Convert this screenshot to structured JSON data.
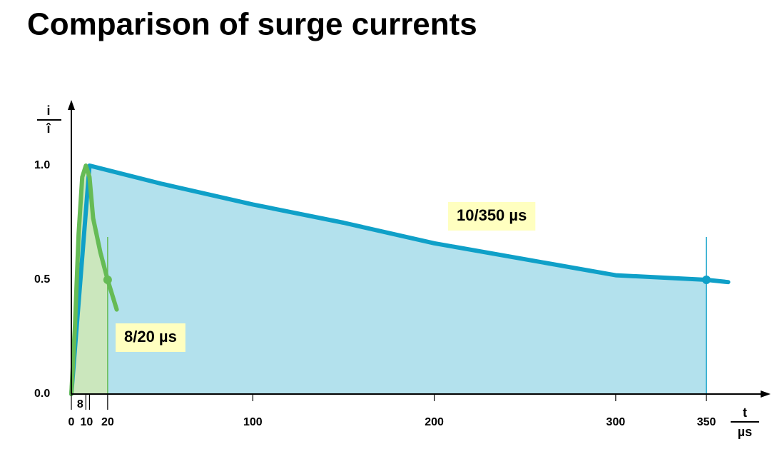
{
  "chart_data": {
    "type": "area",
    "title": "Comparison of surge currents",
    "y_label": {
      "numerator": "i",
      "denominator": "î"
    },
    "x_label": {
      "numerator": "t",
      "denominator": "µs"
    },
    "series": [
      {
        "name": "10/350 µs",
        "color": "#0fa0c8",
        "fill": "#b3e1ed",
        "x": [
          0,
          10,
          50,
          100,
          150,
          200,
          250,
          300,
          350,
          362
        ],
        "values": [
          0,
          1.0,
          0.92,
          0.83,
          0.75,
          0.66,
          0.59,
          0.52,
          0.5,
          0.49
        ]
      },
      {
        "name": "8/20 µs",
        "color": "#66bb55",
        "fill": "#cbe7bd",
        "x": [
          0,
          2,
          4,
          6,
          8,
          10,
          12,
          16,
          20,
          25
        ],
        "values": [
          0,
          0.3,
          0.7,
          0.95,
          1.0,
          0.95,
          0.77,
          0.62,
          0.5,
          0.37
        ]
      }
    ],
    "xlim": [
      0,
      380
    ],
    "ylim": [
      0,
      1.2
    ],
    "xticks": [
      0,
      8,
      10,
      20,
      100,
      200,
      300,
      350
    ],
    "yticks": [
      {
        "value": 0,
        "label": "0.0"
      },
      {
        "value": 0.5,
        "label": "0.5"
      },
      {
        "value": 1,
        "label": "1.0"
      }
    ]
  }
}
